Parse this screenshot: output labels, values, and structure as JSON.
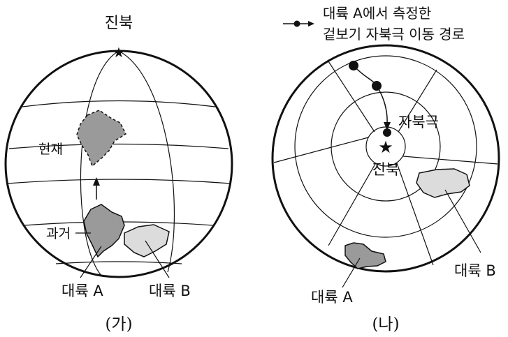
{
  "figure_a": {
    "north_label": "진북",
    "present_label": "현재",
    "past_label": "과거",
    "continent_a_label": "대륙 A",
    "continent_b_label": "대륙 B",
    "caption": "(가)"
  },
  "figure_b": {
    "legend_line1": "대륙 A에서 측정한",
    "legend_line2": "겉보기 자북극 이동 경로",
    "magnetic_pole_label": "자북극",
    "north_label": "진북",
    "continent_a_label": "대륙 A",
    "continent_b_label": "대륙 B",
    "caption": "(나)"
  },
  "colors": {
    "continent_dark": "#9a9a9a",
    "continent_light": "#dcdcdc",
    "line": "#111111"
  }
}
